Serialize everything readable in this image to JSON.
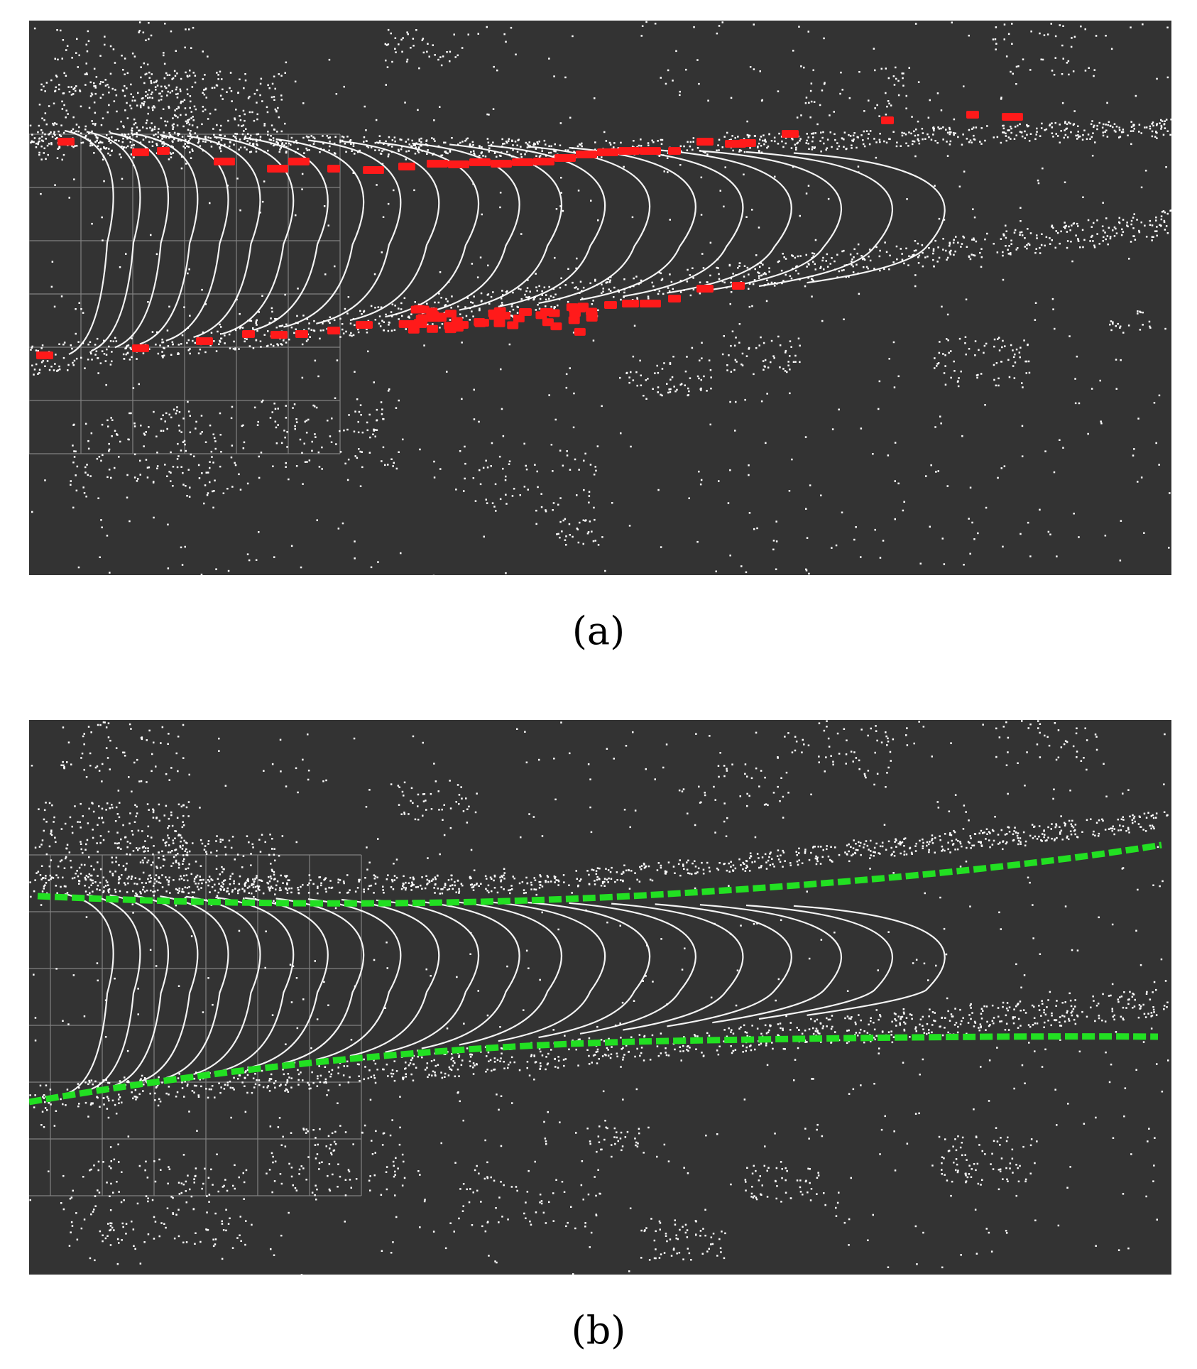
{
  "figure": {
    "panels": [
      {
        "caption": "(a)",
        "detected_point_color": "#ff1a1a",
        "background_color": "#333333",
        "point_cloud_color": "#ffffff",
        "grid_color": "#8a8a8a"
      },
      {
        "caption": "(b)",
        "fitted_line_color": "#22e022",
        "background_color": "#333333",
        "point_cloud_color": "#ffffff",
        "grid_color": "#8a8a8a"
      }
    ]
  }
}
